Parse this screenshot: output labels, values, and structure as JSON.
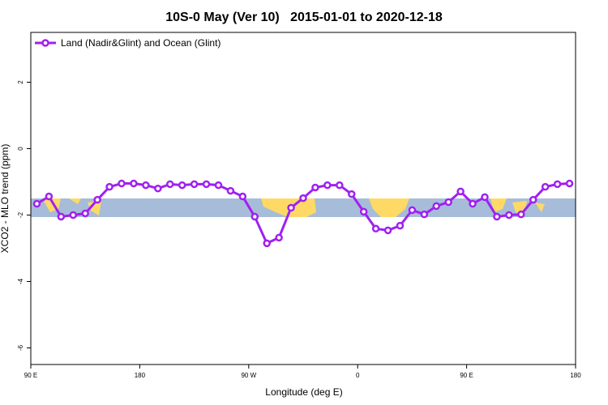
{
  "chart_data": {
    "type": "line",
    "title": "10S-0 May (Ver 10)   2015-01-01 to 2020-12-18",
    "x_label": "Longitude (deg E)",
    "y_label": "XCO2 - MLO trend (ppm)",
    "xlim": [
      90,
      540
    ],
    "ylim": [
      -6.5,
      3.5
    ],
    "xticks": [
      {
        "value": 90,
        "label": "90 E"
      },
      180,
      {
        "value": 270,
        "label": "90 W"
      },
      {
        "value": 360,
        "label": "0"
      },
      {
        "value": 450,
        "label": "90 E"
      },
      {
        "value": 540,
        "label": "180"
      }
    ],
    "yticks": [
      -6,
      -4,
      -2,
      0,
      2
    ],
    "legend": "top-left",
    "x": [
      95,
      105,
      115,
      125,
      135,
      145,
      155,
      165,
      175,
      185,
      195,
      205,
      215,
      225,
      235,
      245,
      255,
      265,
      275,
      285,
      295,
      305,
      315,
      325,
      335,
      345,
      355,
      365,
      375,
      385,
      395,
      405,
      415,
      425,
      435,
      445,
      455,
      465,
      475,
      485,
      495,
      505,
      515,
      525,
      535
    ],
    "series": [
      {
        "name": "Land (Nadir&Glint) and Ocean (Glint)",
        "color": "#a020f0",
        "values": [
          -1.66,
          -1.44,
          -2.05,
          -2.0,
          -1.95,
          -1.54,
          -1.15,
          -1.05,
          -1.05,
          -1.1,
          -1.2,
          -1.07,
          -1.1,
          -1.07,
          -1.07,
          -1.1,
          -1.27,
          -1.44,
          -2.05,
          -2.85,
          -2.68,
          -1.78,
          -1.49,
          -1.17,
          -1.1,
          -1.1,
          -1.37,
          -1.9,
          -2.41,
          -2.46,
          -2.32,
          -1.85,
          -1.98,
          -1.73,
          -1.61,
          -1.29,
          -1.66,
          -1.46,
          -2.05,
          -2.0,
          -1.98,
          -1.54,
          -1.15,
          -1.07,
          -1.05
        ]
      }
    ]
  }
}
